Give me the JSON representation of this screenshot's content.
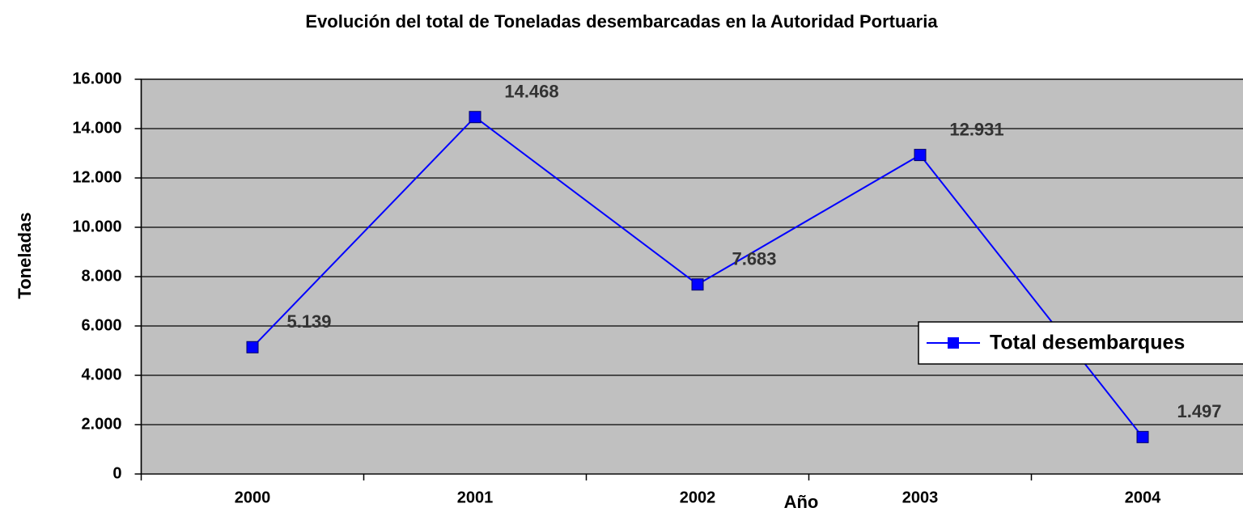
{
  "chart_data": {
    "type": "line",
    "title": "Evolución del total de Toneladas desembarcadas en la Autoridad Portuaria",
    "x_label": "Año",
    "y_label": "Toneladas",
    "categories": [
      "2000",
      "2001",
      "2002",
      "2003",
      "2004"
    ],
    "series": [
      {
        "name": "Total desembarques",
        "color": "#0000ff",
        "values": [
          5139,
          14468,
          7683,
          12931,
          1497
        ],
        "value_labels": [
          "5.139",
          "14.468",
          "7.683",
          "12.931",
          "1.497"
        ]
      }
    ],
    "ylim": [
      0,
      16000
    ],
    "yticks": [
      0,
      {
        "value": 2000,
        "label": "2.000"
      },
      {
        "value": 4000,
        "label": "4.000"
      },
      {
        "value": 6000,
        "label": "6.000"
      },
      {
        "value": 8000,
        "label": "8.000"
      },
      {
        "value": 10000,
        "label": "10.000"
      },
      {
        "value": 12000,
        "label": "12.000"
      },
      {
        "value": 14000,
        "label": "14.000"
      },
      {
        "value": 16000,
        "label": "16.000"
      }
    ],
    "grid": true,
    "legend": "right",
    "plot_background": "#c0c0c0"
  }
}
